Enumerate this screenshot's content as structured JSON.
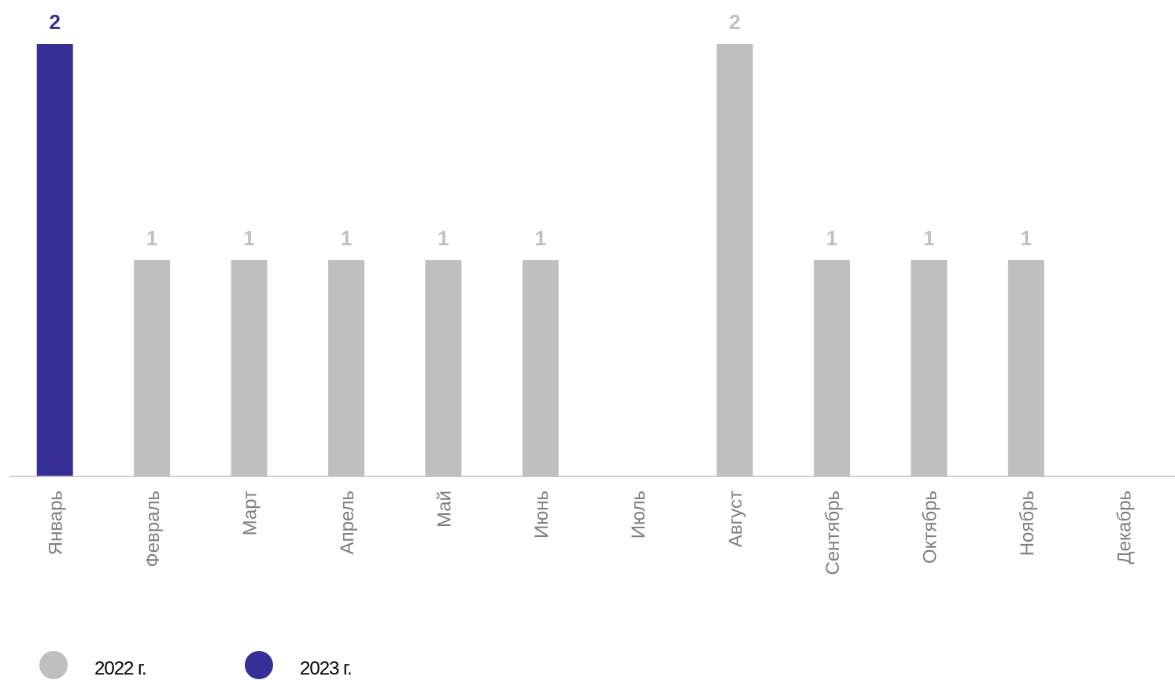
{
  "chart_data": {
    "type": "bar",
    "categories": [
      "Январь",
      "Февраль",
      "Март",
      "Апрель",
      "Май",
      "Июнь",
      "Июль",
      "Август",
      "Сентябрь",
      "Октябрь",
      "Ноябрь",
      "Декабрь"
    ],
    "series": [
      {
        "name": "2022 г.",
        "color": "#BFBFBF",
        "values": [
          null,
          1,
          1,
          1,
          1,
          1,
          null,
          2,
          1,
          1,
          1,
          null
        ]
      },
      {
        "name": "2023 г.",
        "color": "#363096",
        "values": [
          2,
          null,
          null,
          null,
          null,
          null,
          null,
          null,
          null,
          null,
          null,
          null
        ]
      }
    ],
    "ylim": [
      0,
      2
    ],
    "grid": false,
    "legend_position": "bottom-left"
  }
}
